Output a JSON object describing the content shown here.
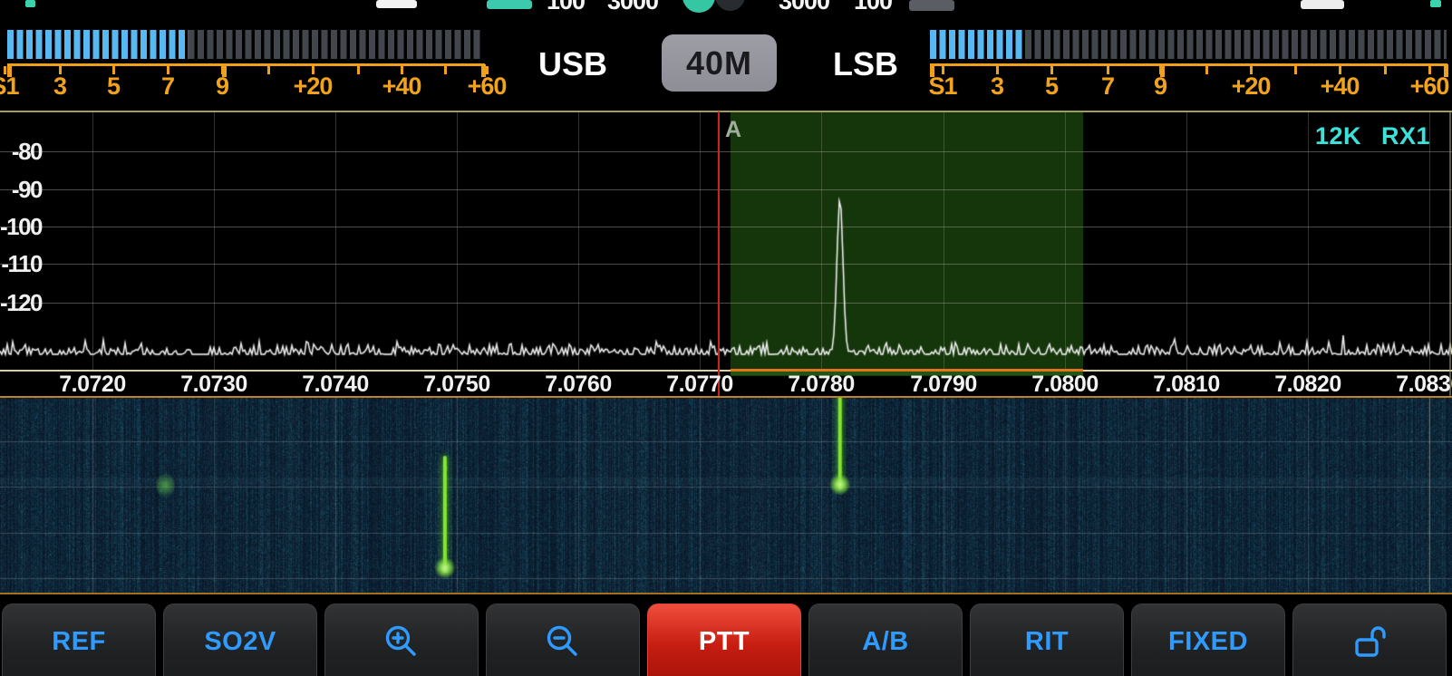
{
  "top_controls": {
    "values": [
      "100",
      "3000",
      "3000",
      "100"
    ]
  },
  "mode_bar": {
    "usb_label": "USB",
    "band_label": "40M",
    "lsb_label": "LSB"
  },
  "s_meter": {
    "scale_labels": [
      "S1",
      "3",
      "5",
      "7",
      "9",
      "+20",
      "+40",
      "+60"
    ],
    "left_bars_lit": 19,
    "left_bars_total": 50,
    "right_bars_lit": 10,
    "right_bars_total": 54
  },
  "spectrum": {
    "db_labels": [
      "-80",
      "-90",
      "-100",
      "-110",
      "-120"
    ],
    "freq_labels": [
      "7.0720",
      "7.0730",
      "7.0740",
      "7.0750",
      "7.0760",
      "7.0770",
      "7.0780",
      "7.0790",
      "7.0800",
      "7.0810",
      "7.0820",
      "7.0830"
    ],
    "span_badge": "12K",
    "receiver_badge": "RX1",
    "vfo_marker": "A",
    "tuned_freq_mhz": 7.0772,
    "passband_low_mhz": 7.0773,
    "passband_high_mhz": 7.0801,
    "noise_floor_db": -133,
    "signals": [
      {
        "freq_mhz": 7.07815,
        "peak_db": -92
      }
    ]
  },
  "waterfall": {
    "signals": [
      {
        "freq_mhz": 7.0726,
        "style": "faint-blob",
        "y_from": 0.4,
        "y_to": 0.5
      },
      {
        "freq_mhz": 7.0749,
        "style": "line",
        "y_from": 0.31,
        "y_to": 0.88
      },
      {
        "freq_mhz": 7.07815,
        "style": "line",
        "y_from": 0.0,
        "y_to": 0.46
      }
    ]
  },
  "toolbar": {
    "buttons": [
      {
        "name": "ref",
        "label": "REF"
      },
      {
        "name": "so2v",
        "label": "SO2V"
      },
      {
        "name": "zoom-in",
        "icon": "magnifier-plus-icon"
      },
      {
        "name": "zoom-out",
        "icon": "magnifier-minus-icon"
      },
      {
        "name": "ptt",
        "label": "PTT",
        "variant": "danger"
      },
      {
        "name": "a-b",
        "label": "A/B"
      },
      {
        "name": "rit",
        "label": "RIT"
      },
      {
        "name": "fixed",
        "label": "FIXED"
      },
      {
        "name": "lock",
        "icon": "unlock-icon"
      }
    ]
  },
  "colors": {
    "accent_blue": "#2f9bfe",
    "meter_orange": "#f2a31d",
    "meter_blue": "#58b8f2",
    "ptt_red": "#c61d11",
    "badge_cyan": "#3ce2da",
    "passband_green": "#2f7618",
    "signal_green": "#86e62e"
  }
}
